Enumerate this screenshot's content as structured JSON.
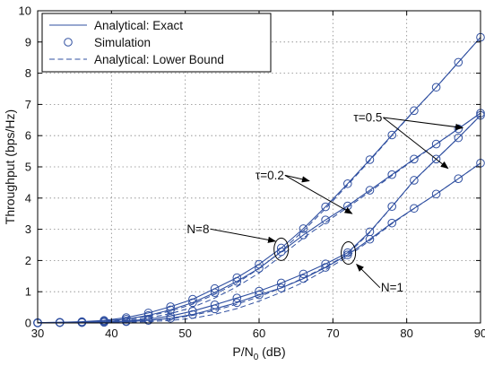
{
  "chart_data": {
    "type": "line",
    "xlabel": "P/N0 (dB)",
    "xlabel_main": "P/N",
    "xlabel_sub": "0",
    "xlabel_tail": " (dB)",
    "ylabel": "Throughput (bps/Hz)",
    "xlim": [
      30,
      90
    ],
    "ylim": [
      0,
      10
    ],
    "xticks": [
      30,
      40,
      50,
      60,
      70,
      80,
      90
    ],
    "yticks": [
      0,
      1,
      2,
      3,
      4,
      5,
      6,
      7,
      8,
      9,
      10
    ],
    "grid": true,
    "legend_placement": "top-left",
    "legend": [
      {
        "label": "Analytical: Exact",
        "style": "solid"
      },
      {
        "label": "Simulation",
        "style": "circle"
      },
      {
        "label": "Analytical: Lower Bound",
        "style": "dashed"
      }
    ],
    "x": [
      30,
      33,
      36,
      39,
      42,
      45,
      48,
      51,
      54,
      57,
      60,
      63,
      66,
      69,
      72,
      75,
      78,
      81,
      84,
      87,
      90
    ],
    "series": [
      {
        "group": "N=8",
        "tau": "0.5",
        "exact": [
          0.01,
          0.02,
          0.04,
          0.08,
          0.17,
          0.32,
          0.52,
          0.76,
          1.1,
          1.45,
          1.88,
          2.4,
          3.02,
          3.72,
          4.46,
          5.23,
          6.02,
          6.8,
          7.55,
          8.35,
          9.15
        ],
        "simulation": [
          0.01,
          0.02,
          0.04,
          0.08,
          0.17,
          0.32,
          0.52,
          0.76,
          1.1,
          1.45,
          1.88,
          2.4,
          3.02,
          3.72,
          4.46,
          5.23,
          6.02,
          6.8,
          7.55,
          8.35,
          9.15
        ],
        "lower_bound": [
          0.0,
          0.01,
          0.02,
          0.05,
          0.11,
          0.22,
          0.38,
          0.6,
          0.92,
          1.28,
          1.74,
          2.3,
          2.95,
          3.66,
          4.42,
          5.2,
          6.0,
          6.79,
          7.55,
          8.35,
          9.15
        ]
      },
      {
        "group": "N=8",
        "tau": "0.2",
        "exact": [
          0.01,
          0.02,
          0.03,
          0.06,
          0.12,
          0.24,
          0.42,
          0.65,
          0.97,
          1.33,
          1.75,
          2.28,
          2.82,
          3.3,
          3.75,
          4.25,
          4.75,
          5.25,
          5.73,
          6.22,
          6.72
        ],
        "simulation": [
          0.01,
          0.02,
          0.03,
          0.06,
          0.12,
          0.24,
          0.42,
          0.65,
          0.97,
          1.33,
          1.75,
          2.28,
          2.82,
          3.3,
          3.75,
          4.25,
          4.75,
          5.25,
          5.73,
          6.22,
          6.72
        ],
        "lower_bound": [
          0.0,
          0.01,
          0.02,
          0.04,
          0.08,
          0.16,
          0.3,
          0.5,
          0.8,
          1.16,
          1.6,
          2.15,
          2.72,
          3.22,
          3.7,
          4.2,
          4.72,
          5.23,
          5.72,
          6.22,
          6.72
        ]
      },
      {
        "group": "N=1",
        "tau": "0.5",
        "exact": [
          0.0,
          0.01,
          0.02,
          0.03,
          0.06,
          0.12,
          0.22,
          0.38,
          0.58,
          0.8,
          1.02,
          1.28,
          1.57,
          1.89,
          2.25,
          2.92,
          3.73,
          4.57,
          5.25,
          5.93,
          6.65
        ],
        "simulation": [
          0.0,
          0.01,
          0.02,
          0.03,
          0.06,
          0.12,
          0.22,
          0.38,
          0.58,
          0.8,
          1.02,
          1.28,
          1.57,
          1.89,
          2.25,
          2.92,
          3.73,
          4.57,
          5.25,
          5.93,
          6.65
        ],
        "lower_bound": [
          0.0,
          0.0,
          0.01,
          0.02,
          0.04,
          0.07,
          0.13,
          0.24,
          0.4,
          0.6,
          0.84,
          1.12,
          1.44,
          1.8,
          2.2,
          2.9,
          3.72,
          4.56,
          5.25,
          5.93,
          6.65
        ]
      },
      {
        "group": "N=1",
        "tau": "0.2",
        "exact": [
          0.0,
          0.01,
          0.01,
          0.02,
          0.04,
          0.08,
          0.15,
          0.27,
          0.45,
          0.65,
          0.9,
          1.12,
          1.42,
          1.78,
          2.18,
          2.68,
          3.2,
          3.67,
          4.13,
          4.62,
          5.12
        ],
        "simulation": [
          0.0,
          0.01,
          0.01,
          0.02,
          0.04,
          0.08,
          0.15,
          0.27,
          0.45,
          0.65,
          0.9,
          1.12,
          1.42,
          1.78,
          2.18,
          2.68,
          3.2,
          3.67,
          4.13,
          4.62,
          5.12
        ],
        "lower_bound": [
          0.0,
          0.0,
          0.0,
          0.01,
          0.02,
          0.04,
          0.08,
          0.15,
          0.28,
          0.46,
          0.7,
          0.98,
          1.3,
          1.7,
          2.12,
          2.64,
          3.18,
          3.66,
          4.13,
          4.62,
          5.12
        ]
      }
    ],
    "annotations": [
      {
        "label": "τ=0.5",
        "text_at": [
          72.8,
          6.45
        ],
        "arrows_to": [
          [
            87.6,
            6.25
          ],
          [
            85.6,
            4.95
          ]
        ]
      },
      {
        "label": "τ=0.2",
        "text_at": [
          59.5,
          4.6
        ],
        "arrows_to": [
          [
            66.8,
            4.55
          ],
          [
            72.6,
            3.5
          ]
        ]
      },
      {
        "label": "N=8",
        "text_at": [
          50.2,
          2.88
        ],
        "arrows_to": [
          [
            62.2,
            2.62
          ]
        ]
      },
      {
        "label": "N=1",
        "text_at": [
          76.5,
          1.0
        ],
        "arrows_to": [
          [
            73.2,
            1.88
          ]
        ]
      }
    ],
    "ellipses": [
      {
        "group": "N=8",
        "center": [
          63.0,
          2.36
        ]
      },
      {
        "group": "N=1",
        "center": [
          72.1,
          2.24
        ]
      }
    ]
  }
}
